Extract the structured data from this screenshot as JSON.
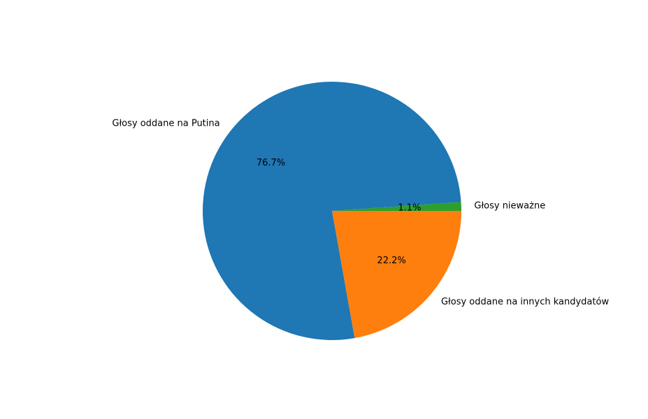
{
  "chart_data": {
    "type": "pie",
    "title": "",
    "categories": [
      "Głosy nieważne",
      "Głosy oddane na Putina",
      "Głosy oddane na innych kandydatów"
    ],
    "values": [
      1.1,
      76.7,
      22.2
    ],
    "value_labels": [
      "1.1%",
      "76.7%",
      "22.2%"
    ],
    "colors": [
      "#2ca02c",
      "#1f77b4",
      "#ff7f0e"
    ],
    "legend": false
  }
}
